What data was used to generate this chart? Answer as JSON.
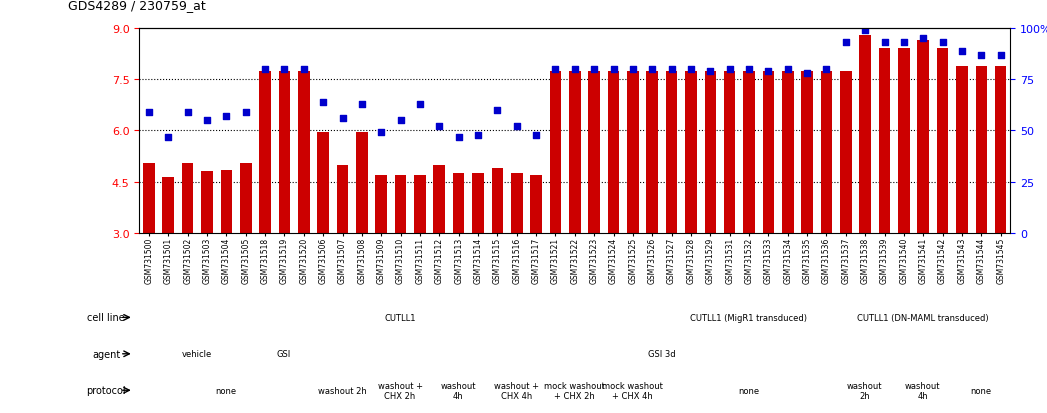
{
  "title": "GDS4289 / 230759_at",
  "samples": [
    "GSM731500",
    "GSM731501",
    "GSM731502",
    "GSM731503",
    "GSM731504",
    "GSM731505",
    "GSM731518",
    "GSM731519",
    "GSM731520",
    "GSM731506",
    "GSM731507",
    "GSM731508",
    "GSM731509",
    "GSM731510",
    "GSM731511",
    "GSM731512",
    "GSM731513",
    "GSM731514",
    "GSM731515",
    "GSM731516",
    "GSM731517",
    "GSM731521",
    "GSM731522",
    "GSM731523",
    "GSM731524",
    "GSM731525",
    "GSM731526",
    "GSM731527",
    "GSM731528",
    "GSM731529",
    "GSM731531",
    "GSM731532",
    "GSM731533",
    "GSM731534",
    "GSM731535",
    "GSM731536",
    "GSM731537",
    "GSM731538",
    "GSM731539",
    "GSM731540",
    "GSM731541",
    "GSM731542",
    "GSM731543",
    "GSM731544",
    "GSM731545"
  ],
  "bar_values": [
    5.05,
    4.65,
    5.05,
    4.8,
    4.85,
    5.05,
    7.75,
    7.75,
    7.75,
    5.95,
    5.0,
    5.95,
    4.7,
    4.7,
    4.7,
    5.0,
    4.75,
    4.75,
    4.9,
    4.75,
    4.7,
    7.75,
    7.75,
    7.75,
    7.75,
    7.75,
    7.75,
    7.75,
    7.75,
    7.75,
    7.75,
    7.75,
    7.75,
    7.75,
    7.75,
    7.75,
    7.75,
    8.8,
    8.4,
    8.4,
    8.65,
    8.4,
    7.9,
    7.9,
    7.9
  ],
  "percentile_values": [
    59,
    47,
    59,
    55,
    57,
    59,
    80,
    80,
    80,
    64,
    56,
    63,
    49,
    55,
    63,
    52,
    47,
    48,
    60,
    52,
    48,
    80,
    80,
    80,
    80,
    80,
    80,
    80,
    80,
    79,
    80,
    80,
    79,
    80,
    78,
    80,
    93,
    99,
    93,
    93,
    95,
    93,
    89,
    87,
    87
  ],
  "ylim_left": [
    3,
    9
  ],
  "ylim_right": [
    0,
    100
  ],
  "yticks_left": [
    3,
    4.5,
    6,
    7.5,
    9
  ],
  "yticks_right": [
    0,
    25,
    50,
    75,
    100
  ],
  "ytick_labels_right": [
    "0",
    "25",
    "50",
    "75",
    "100%"
  ],
  "gridlines": [
    4.5,
    6.0,
    7.5
  ],
  "bar_color": "#cc0000",
  "marker_color": "#0000cc",
  "bg_color": "#ffffff",
  "cell_line_groups": [
    {
      "label": "CUTLL1",
      "start": 0,
      "end": 27,
      "color": "#c8e8c8"
    },
    {
      "label": "CUTLL1 (MigR1 transduced)",
      "start": 27,
      "end": 36,
      "color": "#88cc88"
    },
    {
      "label": "CUTLL1 (DN-MAML transduced)",
      "start": 36,
      "end": 45,
      "color": "#44aa44"
    }
  ],
  "agent_groups": [
    {
      "label": "vehicle",
      "start": 0,
      "end": 6,
      "color": "#c0c0e8"
    },
    {
      "label": "GSI",
      "start": 6,
      "end": 9,
      "color": "#c8aadd"
    },
    {
      "label": "GSI 3d",
      "start": 9,
      "end": 45,
      "color": "#7777cc"
    }
  ],
  "protocol_groups": [
    {
      "label": "none",
      "start": 0,
      "end": 9,
      "color": "#ffd8d8"
    },
    {
      "label": "washout 2h",
      "start": 9,
      "end": 12,
      "color": "#ffbbbb"
    },
    {
      "label": "washout +\nCHX 2h",
      "start": 12,
      "end": 15,
      "color": "#ff9999"
    },
    {
      "label": "washout\n4h",
      "start": 15,
      "end": 18,
      "color": "#ffbbbb"
    },
    {
      "label": "washout +\nCHX 4h",
      "start": 18,
      "end": 21,
      "color": "#ff9999"
    },
    {
      "label": "mock washout\n+ CHX 2h",
      "start": 21,
      "end": 24,
      "color": "#ffccbb"
    },
    {
      "label": "mock washout\n+ CHX 4h",
      "start": 24,
      "end": 27,
      "color": "#ff8877"
    },
    {
      "label": "none",
      "start": 27,
      "end": 36,
      "color": "#ffd8d8"
    },
    {
      "label": "washout\n2h",
      "start": 36,
      "end": 39,
      "color": "#ffbbbb"
    },
    {
      "label": "washout\n4h",
      "start": 39,
      "end": 42,
      "color": "#ffbbbb"
    },
    {
      "label": "none",
      "start": 42,
      "end": 45,
      "color": "#ffd8d8"
    }
  ],
  "row_labels": [
    "cell line",
    "agent",
    "protocol"
  ],
  "label_bg_color": "#e0e0e0"
}
